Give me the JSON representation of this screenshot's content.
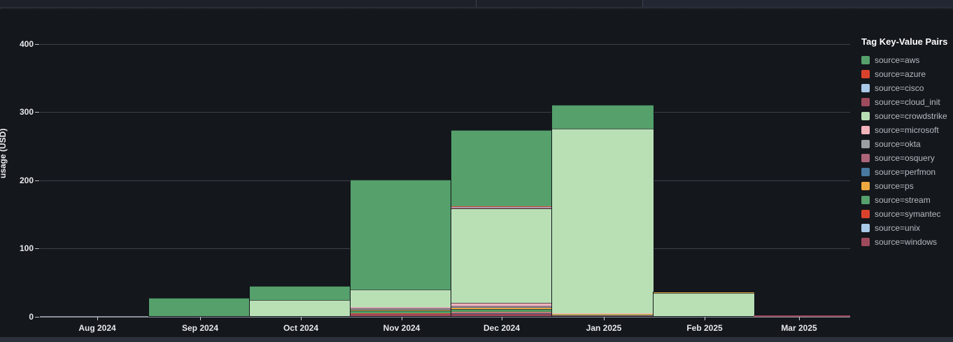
{
  "window": {
    "note": "dark dashboard chrome, no visible text"
  },
  "chart_data": {
    "type": "bar",
    "stacked": true,
    "title": "",
    "ylabel": "usage (USD)",
    "xlabel": "",
    "legend_title": "Tag Key-Value Pairs",
    "legend_position": "right",
    "grid": true,
    "ylim": [
      0,
      400
    ],
    "yticks": [
      0,
      100,
      200,
      300,
      400
    ],
    "categories": [
      "Aug 2024",
      "Sep 2024",
      "Oct 2024",
      "Nov 2024",
      "Dec 2024",
      "Jan 2025",
      "Feb 2025",
      "Mar 2025"
    ],
    "series": [
      {
        "name": "source=aws",
        "color": "#55a06b",
        "values": [
          0,
          26,
          20.5,
          161.5,
          112,
          35,
          0,
          0
        ]
      },
      {
        "name": "source=azure",
        "color": "#da422c",
        "values": [
          0,
          0,
          0,
          0,
          0.8,
          0,
          0,
          0
        ]
      },
      {
        "name": "source=cisco",
        "color": "#a9c9e8",
        "values": [
          0,
          0,
          0,
          0,
          0.3,
          0,
          0,
          0
        ]
      },
      {
        "name": "source=cloud_init",
        "color": "#9d4a5c",
        "values": [
          0,
          0,
          0,
          0,
          0.6,
          0,
          0,
          0
        ]
      },
      {
        "name": "source=crowdstrike",
        "color": "#b9e0b5",
        "values": [
          0,
          0,
          23.5,
          25.5,
          139,
          271,
          33,
          0
        ]
      },
      {
        "name": "source=microsoft",
        "color": "#f2b3bb",
        "values": [
          0,
          0,
          0,
          0.8,
          4,
          0.6,
          0,
          0
        ]
      },
      {
        "name": "source=okta",
        "color": "#9b9fa3",
        "values": [
          0,
          0,
          0,
          0.4,
          0.8,
          0,
          0,
          0
        ]
      },
      {
        "name": "source=osquery",
        "color": "#ab6478",
        "values": [
          0,
          0,
          0,
          0.4,
          1.2,
          0,
          0,
          0
        ]
      },
      {
        "name": "source=perfmon",
        "color": "#48799f",
        "values": [
          0,
          0,
          0,
          0.4,
          0.8,
          0,
          0,
          0
        ]
      },
      {
        "name": "source=ps",
        "color": "#eca93f",
        "values": [
          0,
          0,
          0,
          1.6,
          1.8,
          0.4,
          1,
          0
        ]
      },
      {
        "name": "source=stream",
        "color": "#55a06b",
        "values": [
          0,
          0,
          0,
          3.6,
          4.5,
          0.6,
          0,
          0
        ]
      },
      {
        "name": "source=symantec",
        "color": "#da422c",
        "values": [
          0,
          0,
          0,
          1.2,
          1,
          0,
          0,
          0
        ]
      },
      {
        "name": "source=unix",
        "color": "#a9c9e8",
        "values": [
          0,
          0,
          0,
          0,
          0.4,
          0,
          0,
          0
        ]
      },
      {
        "name": "source=windows",
        "color": "#9d4a5c",
        "values": [
          0,
          0,
          0,
          2.8,
          3.5,
          1,
          0,
          1.2
        ]
      }
    ],
    "bars": [
      {
        "category": "Aug 2024",
        "segments": []
      },
      {
        "category": "Sep 2024",
        "segments": [
          {
            "source": "source=aws",
            "value": 26
          }
        ]
      },
      {
        "category": "Oct 2024",
        "segments": [
          {
            "source": "source=crowdstrike",
            "value": 23.5
          },
          {
            "source": "source=aws",
            "value": 20.5
          }
        ]
      },
      {
        "category": "Nov 2024",
        "segments": [
          {
            "source": "source=windows",
            "value": 2.8
          },
          {
            "source": "source=symantec",
            "value": 1.2
          },
          {
            "source": "source=stream",
            "value": 3.6
          },
          {
            "source": "source=ps",
            "value": 1.6
          },
          {
            "source": "source=perfmon",
            "value": 0.4
          },
          {
            "source": "source=osquery",
            "value": 0.4
          },
          {
            "source": "source=okta",
            "value": 0.4
          },
          {
            "source": "source=microsoft",
            "value": 0.8
          },
          {
            "source": "source=crowdstrike",
            "value": 25.5
          },
          {
            "source": "source=aws",
            "value": 161.5
          }
        ]
      },
      {
        "category": "Dec 2024",
        "segments": [
          {
            "source": "source=windows",
            "value": 3.5
          },
          {
            "source": "source=unix",
            "value": 0.4
          },
          {
            "source": "source=symantec",
            "value": 1
          },
          {
            "source": "source=stream",
            "value": 4.5
          },
          {
            "source": "source=ps",
            "value": 1.8
          },
          {
            "source": "source=perfmon",
            "value": 0.8
          },
          {
            "source": "source=osquery",
            "value": 1.2
          },
          {
            "source": "source=okta",
            "value": 0.8
          },
          {
            "source": "source=microsoft",
            "value": 4
          },
          {
            "source": "source=crowdstrike",
            "value": 139
          },
          {
            "source": "source=cloud_init",
            "value": 0.6
          },
          {
            "source": "source=cisco",
            "value": 0.3
          },
          {
            "source": "source=azure",
            "value": 0.8
          },
          {
            "source": "source=aws",
            "value": 112
          }
        ]
      },
      {
        "category": "Jan 2025",
        "segments": [
          {
            "source": "source=windows",
            "value": 1
          },
          {
            "source": "source=stream",
            "value": 0.6
          },
          {
            "source": "source=ps",
            "value": 0.4
          },
          {
            "source": "source=microsoft",
            "value": 0.6
          },
          {
            "source": "source=crowdstrike",
            "value": 271
          },
          {
            "source": "source=aws",
            "value": 35
          }
        ]
      },
      {
        "category": "Feb 2025",
        "segments": [
          {
            "source": "source=crowdstrike",
            "value": 33
          },
          {
            "source": "source=ps",
            "value": 1
          }
        ]
      },
      {
        "category": "Mar 2025",
        "segments": [
          {
            "source": "source=windows",
            "value": 1.2
          }
        ]
      }
    ]
  }
}
